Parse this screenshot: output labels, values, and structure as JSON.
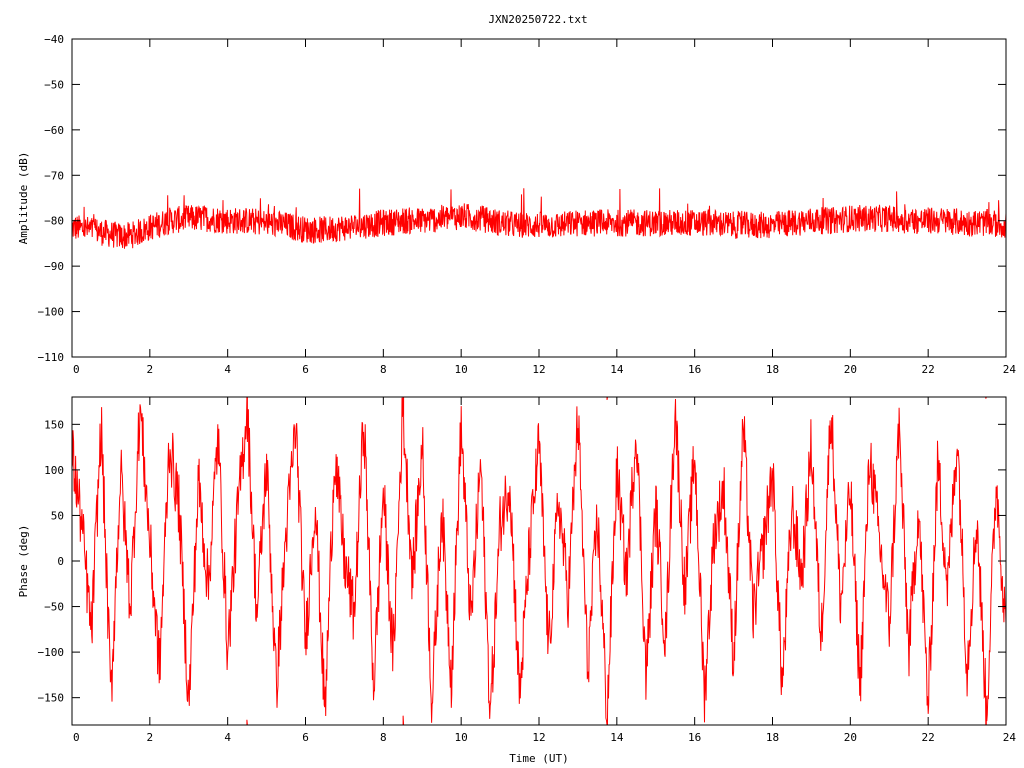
{
  "chart_data": [
    {
      "type": "line",
      "title": "JXN20250722.txt",
      "xlabel": "",
      "ylabel": "Amplitude (dB)",
      "xlim": [
        0,
        24
      ],
      "ylim": [
        -110,
        -40
      ],
      "x_ticks": [
        "0",
        "2",
        "4",
        "6",
        "8",
        "10",
        "12",
        "14",
        "16",
        "18",
        "20",
        "22",
        "24"
      ],
      "y_ticks": [
        "-40",
        "-50",
        "-60",
        "-70",
        "-80",
        "-90",
        "-100",
        "-110"
      ],
      "grid": false,
      "series": [
        {
          "color": "#ff0000",
          "x": [
            0,
            0.5,
            1.0,
            1.3,
            1.6,
            2.0,
            2.5,
            3.0,
            3.5,
            4.0,
            4.5,
            5.0,
            5.5,
            6.0,
            6.5,
            7.0,
            7.5,
            8.0,
            8.5,
            9.0,
            9.5,
            10.0,
            10.5,
            11.0,
            11.5,
            12.0,
            12.5,
            13.0,
            13.5,
            14.0,
            14.5,
            15.0,
            15.5,
            16.0,
            16.5,
            17.0,
            17.5,
            18.0,
            18.5,
            19.0,
            19.5,
            20.0,
            20.5,
            21.0,
            21.5,
            22.0,
            22.5,
            23.0,
            23.5,
            24.0
          ],
          "y": [
            -81.5,
            -82,
            -83,
            -83.5,
            -83,
            -81.5,
            -80,
            -79.5,
            -79.5,
            -80,
            -80,
            -80.5,
            -81,
            -82,
            -82,
            -81.5,
            -81,
            -80.5,
            -80,
            -80,
            -79.5,
            -79,
            -79.5,
            -80.5,
            -81,
            -81,
            -81,
            -80.5,
            -80.5,
            -80.5,
            -80.5,
            -80.5,
            -80.5,
            -80.5,
            -80.5,
            -81,
            -81,
            -81,
            -80.5,
            -80,
            -80,
            -79.5,
            -79.5,
            -79.5,
            -80,
            -80,
            -80,
            -80.5,
            -80.5,
            -81
          ],
          "band": 3
        }
      ]
    },
    {
      "type": "line",
      "title": "",
      "xlabel": "Time (UT)",
      "ylabel": "Phase (deg)",
      "xlim": [
        0,
        24
      ],
      "ylim": [
        -180,
        180
      ],
      "x_ticks": [
        "0",
        "2",
        "4",
        "6",
        "8",
        "10",
        "12",
        "14",
        "16",
        "18",
        "20",
        "22",
        "24"
      ],
      "y_ticks": [
        "150",
        "100",
        "50",
        "0",
        "-50",
        "-100",
        "-150"
      ],
      "grid": false,
      "series": [
        {
          "color": "#ff0000",
          "x": [
            0,
            0.25,
            0.5,
            0.75,
            1.0,
            1.25,
            1.5,
            1.75,
            2.0,
            2.25,
            2.5,
            2.75,
            3.0,
            3.25,
            3.5,
            3.75,
            4.0,
            4.25,
            4.5,
            4.75,
            5.0,
            5.25,
            5.5,
            5.75,
            6.0,
            6.25,
            6.5,
            6.75,
            7.0,
            7.25,
            7.5,
            7.75,
            8.0,
            8.25,
            8.5,
            8.75,
            9.0,
            9.25,
            9.5,
            9.75,
            10.0,
            10.25,
            10.5,
            10.75,
            11.0,
            11.25,
            11.5,
            11.75,
            12.0,
            12.25,
            12.5,
            12.75,
            13.0,
            13.25,
            13.5,
            13.75,
            14.0,
            14.25,
            14.5,
            14.75,
            15.0,
            15.25,
            15.5,
            15.75,
            16.0,
            16.25,
            16.5,
            16.75,
            17.0,
            17.25,
            17.5,
            17.75,
            18.0,
            18.25,
            18.5,
            18.75,
            19.0,
            19.25,
            19.5,
            19.75,
            20.0,
            20.25,
            20.5,
            20.75,
            21.0,
            21.25,
            21.5,
            21.75,
            22.0,
            22.25,
            22.5,
            22.75,
            23.0,
            23.25,
            23.5,
            23.75,
            24.0
          ],
          "y": [
            120,
            40,
            -80,
            150,
            -150,
            100,
            -50,
            170,
            20,
            -120,
            130,
            60,
            -160,
            90,
            -30,
            140,
            -100,
            50,
            170,
            -60,
            110,
            -140,
            30,
            150,
            -90,
            70,
            -170,
            120,
            0,
            -60,
            160,
            -140,
            80,
            -110,
            170,
            -20,
            130,
            -160,
            60,
            -130,
            150,
            -70,
            110,
            -170,
            40,
            90,
            -150,
            10,
            130,
            -100,
            70,
            -40,
            160,
            -120,
            50,
            -170,
            100,
            -20,
            150,
            -130,
            60,
            -90,
            170,
            -40,
            120,
            -150,
            30,
            80,
            -110,
            150,
            -60,
            10,
            100,
            -140,
            60,
            -20,
            130,
            -90,
            170,
            -50,
            80,
            -140,
            120,
            20,
            -70,
            150,
            -100,
            60,
            -160,
            110,
            -30,
            140,
            -120,
            50,
            -170,
            90,
            -80
          ]
        }
      ]
    }
  ]
}
